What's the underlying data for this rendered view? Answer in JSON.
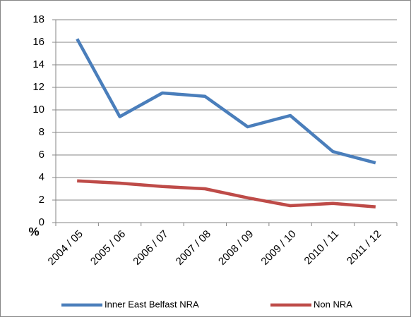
{
  "chart_data": {
    "type": "line",
    "y_label": "%",
    "categories": [
      "2004 / 05",
      "2005 / 06",
      "2006 / 07",
      "2007 / 08",
      "2008 / 09",
      "2009 / 10",
      "2010 / 11",
      "2011 / 12"
    ],
    "series": [
      {
        "name": "Inner East Belfast NRA",
        "color": "#4a7ebb",
        "values": [
          16.3,
          9.4,
          11.5,
          11.2,
          8.5,
          9.5,
          6.3,
          5.3
        ]
      },
      {
        "name": "Non NRA",
        "color": "#be4b48",
        "values": [
          3.7,
          3.5,
          3.2,
          3.0,
          2.2,
          1.5,
          1.7,
          1.4
        ]
      }
    ],
    "ylim": [
      0,
      18
    ],
    "yticks": [
      0,
      2,
      4,
      6,
      8,
      10,
      12,
      14,
      16,
      18
    ],
    "grid": true,
    "legend": "bottom"
  }
}
